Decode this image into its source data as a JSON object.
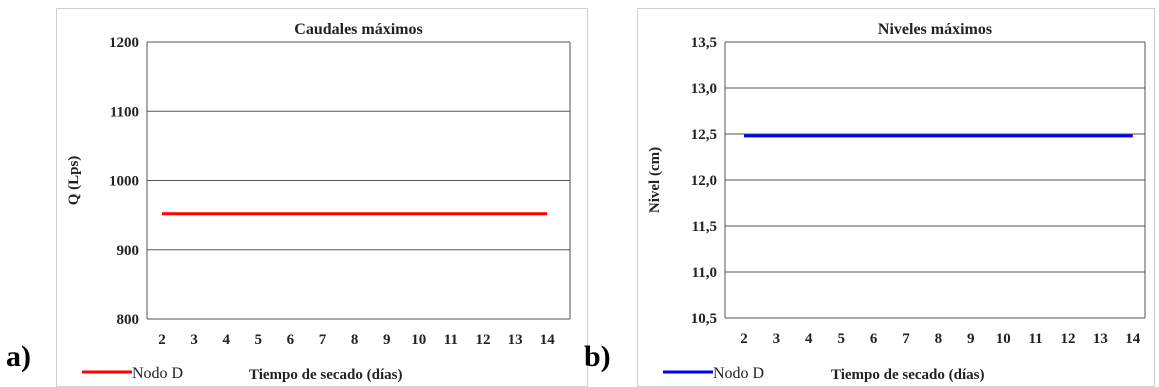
{
  "chart_data": [
    {
      "panel_label": "a)",
      "type": "line",
      "title": "Caudales máximos",
      "xlabel": "Tiempo de secado (días)",
      "ylabel": "Q (Lps)",
      "categories": [
        "2",
        "3",
        "4",
        "5",
        "6",
        "7",
        "8",
        "9",
        "10",
        "11",
        "12",
        "13",
        "14"
      ],
      "x": [
        2,
        3,
        4,
        5,
        6,
        7,
        8,
        9,
        10,
        11,
        12,
        13,
        14
      ],
      "ylim": [
        800,
        1200
      ],
      "yticks": [
        800,
        900,
        1000,
        1100,
        1200
      ],
      "ytick_labels": [
        "800",
        "900",
        "1000",
        "1100",
        "1200"
      ],
      "grid": true,
      "legend_position": "bottom-left",
      "series": [
        {
          "name": "Nodo D",
          "color": "#ff0000",
          "values": [
            952,
            952,
            952,
            952,
            952,
            952,
            952,
            952,
            952,
            952,
            952,
            952,
            952
          ]
        }
      ]
    },
    {
      "panel_label": "b)",
      "type": "line",
      "title": "Niveles máximos",
      "xlabel": "Tiempo de secado (días)",
      "ylabel": "Nivel (cm)",
      "categories": [
        "2",
        "3",
        "4",
        "5",
        "6",
        "7",
        "8",
        "9",
        "10",
        "11",
        "12",
        "13",
        "14"
      ],
      "x": [
        2,
        3,
        4,
        5,
        6,
        7,
        8,
        9,
        10,
        11,
        12,
        13,
        14
      ],
      "ylim": [
        10.5,
        13.5
      ],
      "yticks": [
        10.5,
        11.0,
        11.5,
        12.0,
        12.5,
        13.0,
        13.5
      ],
      "ytick_labels": [
        "10,5",
        "11,0",
        "11,5",
        "12,0",
        "12,5",
        "13,0",
        "13,5"
      ],
      "grid": true,
      "legend_position": "bottom-left",
      "series": [
        {
          "name": "Nodo D",
          "color": "#0000ff",
          "values": [
            12.48,
            12.48,
            12.48,
            12.48,
            12.48,
            12.48,
            12.48,
            12.48,
            12.48,
            12.48,
            12.48,
            12.48,
            12.48
          ]
        }
      ]
    }
  ]
}
